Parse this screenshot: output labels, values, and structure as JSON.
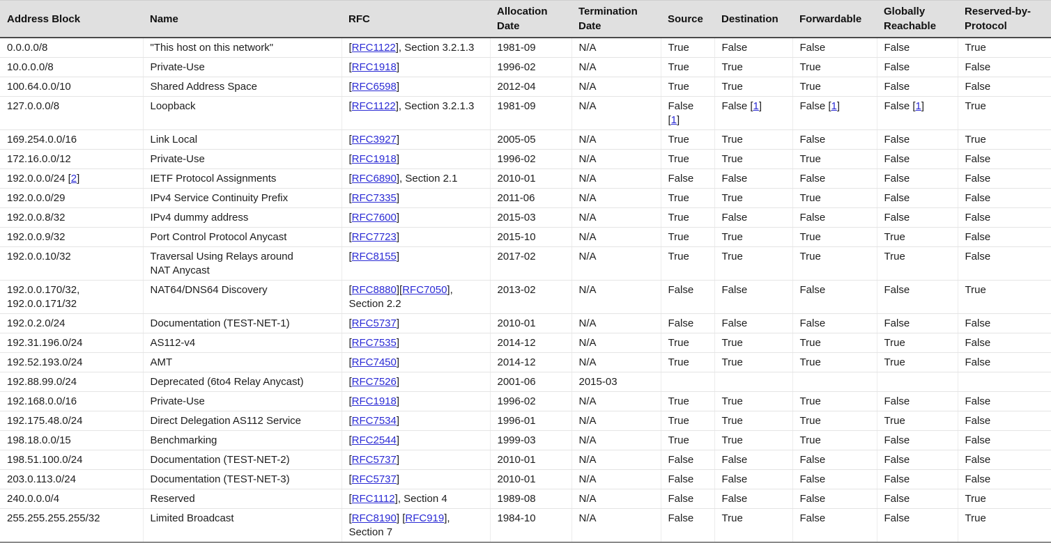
{
  "colors": {
    "header_bg": "#e0e0e0",
    "header_border": "#4a4a4a",
    "row_border": "#e4e4e4",
    "column_border": "#ececec",
    "table_bottom_border": "#8a8a8a",
    "text": "#1d1d1d",
    "link": "#2b2bd5"
  },
  "table": {
    "columns": [
      {
        "key": "address_block",
        "label": "Address Block"
      },
      {
        "key": "name",
        "label": "Name"
      },
      {
        "key": "rfc",
        "label": "RFC"
      },
      {
        "key": "allocation_date",
        "label": "Allocation Date"
      },
      {
        "key": "termination_date",
        "label": "Termination Date"
      },
      {
        "key": "source",
        "label": "Source"
      },
      {
        "key": "destination",
        "label": "Destination"
      },
      {
        "key": "forwardable",
        "label": "Forwardable"
      },
      {
        "key": "globally_reachable",
        "label": "Globally Reachable"
      },
      {
        "key": "reserved_by_protocol",
        "label": "Reserved-by-Protocol"
      }
    ],
    "rows": [
      {
        "address_block": "0.0.0.0/8",
        "name": "\"This host on this network\"",
        "rfc": [
          {
            "t": "["
          },
          {
            "t": "RFC1122",
            "a": 1
          },
          {
            "t": "], Section 3.2.1.3"
          }
        ],
        "allocation_date": "1981-09",
        "termination_date": "N/A",
        "source": "True",
        "destination": "False",
        "forwardable": "False",
        "globally_reachable": "False",
        "reserved_by_protocol": "True"
      },
      {
        "address_block": "10.0.0.0/8",
        "name": "Private-Use",
        "rfc": [
          {
            "t": "["
          },
          {
            "t": "RFC1918",
            "a": 1
          },
          {
            "t": "]"
          }
        ],
        "allocation_date": "1996-02",
        "termination_date": "N/A",
        "source": "True",
        "destination": "True",
        "forwardable": "True",
        "globally_reachable": "False",
        "reserved_by_protocol": "False"
      },
      {
        "address_block": "100.64.0.0/10",
        "name": "Shared Address Space",
        "rfc": [
          {
            "t": "["
          },
          {
            "t": "RFC6598",
            "a": 1
          },
          {
            "t": "]"
          }
        ],
        "allocation_date": "2012-04",
        "termination_date": "N/A",
        "source": "True",
        "destination": "True",
        "forwardable": "True",
        "globally_reachable": "False",
        "reserved_by_protocol": "False"
      },
      {
        "address_block": "127.0.0.0/8",
        "name": "Loopback",
        "rfc": [
          {
            "t": "["
          },
          {
            "t": "RFC1122",
            "a": 1
          },
          {
            "t": "], Section 3.2.1.3"
          }
        ],
        "allocation_date": "1981-09",
        "termination_date": "N/A",
        "source": [
          {
            "t": "False"
          },
          {
            "nl": 1
          },
          {
            "t": "["
          },
          {
            "t": "1",
            "a": 1
          },
          {
            "t": "]"
          }
        ],
        "destination": [
          {
            "t": "False ["
          },
          {
            "t": "1",
            "a": 1
          },
          {
            "t": "]"
          }
        ],
        "forwardable": [
          {
            "t": "False ["
          },
          {
            "t": "1",
            "a": 1
          },
          {
            "t": "]"
          }
        ],
        "globally_reachable": [
          {
            "t": "False ["
          },
          {
            "t": "1",
            "a": 1
          },
          {
            "t": "]"
          }
        ],
        "reserved_by_protocol": "True"
      },
      {
        "address_block": "169.254.0.0/16",
        "name": "Link Local",
        "rfc": [
          {
            "t": "["
          },
          {
            "t": "RFC3927",
            "a": 1
          },
          {
            "t": "]"
          }
        ],
        "allocation_date": "2005-05",
        "termination_date": "N/A",
        "source": "True",
        "destination": "True",
        "forwardable": "False",
        "globally_reachable": "False",
        "reserved_by_protocol": "True"
      },
      {
        "address_block": "172.16.0.0/12",
        "name": "Private-Use",
        "rfc": [
          {
            "t": "["
          },
          {
            "t": "RFC1918",
            "a": 1
          },
          {
            "t": "]"
          }
        ],
        "allocation_date": "1996-02",
        "termination_date": "N/A",
        "source": "True",
        "destination": "True",
        "forwardable": "True",
        "globally_reachable": "False",
        "reserved_by_protocol": "False"
      },
      {
        "address_block": [
          {
            "t": "192.0.0.0/24 ["
          },
          {
            "t": "2",
            "a": 1
          },
          {
            "t": "]"
          }
        ],
        "name": "IETF Protocol Assignments",
        "rfc": [
          {
            "t": "["
          },
          {
            "t": "RFC6890",
            "a": 1
          },
          {
            "t": "], Section 2.1"
          }
        ],
        "allocation_date": "2010-01",
        "termination_date": "N/A",
        "source": "False",
        "destination": "False",
        "forwardable": "False",
        "globally_reachable": "False",
        "reserved_by_protocol": "False"
      },
      {
        "address_block": "192.0.0.0/29",
        "name": "IPv4 Service Continuity Prefix",
        "rfc": [
          {
            "t": "["
          },
          {
            "t": "RFC7335",
            "a": 1
          },
          {
            "t": "]"
          }
        ],
        "allocation_date": "2011-06",
        "termination_date": "N/A",
        "source": "True",
        "destination": "True",
        "forwardable": "True",
        "globally_reachable": "False",
        "reserved_by_protocol": "False"
      },
      {
        "address_block": "192.0.0.8/32",
        "name": "IPv4 dummy address",
        "rfc": [
          {
            "t": "["
          },
          {
            "t": "RFC7600",
            "a": 1
          },
          {
            "t": "]"
          }
        ],
        "allocation_date": "2015-03",
        "termination_date": "N/A",
        "source": "True",
        "destination": "False",
        "forwardable": "False",
        "globally_reachable": "False",
        "reserved_by_protocol": "False"
      },
      {
        "address_block": "192.0.0.9/32",
        "name": "Port Control Protocol Anycast",
        "rfc": [
          {
            "t": "["
          },
          {
            "t": "RFC7723",
            "a": 1
          },
          {
            "t": "]"
          }
        ],
        "allocation_date": "2015-10",
        "termination_date": "N/A",
        "source": "True",
        "destination": "True",
        "forwardable": "True",
        "globally_reachable": "True",
        "reserved_by_protocol": "False"
      },
      {
        "address_block": "192.0.0.10/32",
        "name": [
          {
            "t": "Traversal Using Relays around"
          },
          {
            "nl": 1
          },
          {
            "t": "NAT Anycast"
          }
        ],
        "rfc": [
          {
            "t": "["
          },
          {
            "t": "RFC8155",
            "a": 1
          },
          {
            "t": "]"
          }
        ],
        "allocation_date": "2017-02",
        "termination_date": "N/A",
        "source": "True",
        "destination": "True",
        "forwardable": "True",
        "globally_reachable": "True",
        "reserved_by_protocol": "False"
      },
      {
        "address_block": [
          {
            "t": "192.0.0.170/32,"
          },
          {
            "nl": 1
          },
          {
            "t": "192.0.0.171/32"
          }
        ],
        "name": "NAT64/DNS64 Discovery",
        "rfc": [
          {
            "t": "["
          },
          {
            "t": "RFC8880",
            "a": 1
          },
          {
            "t": "]["
          },
          {
            "t": "RFC7050",
            "a": 1
          },
          {
            "t": "],"
          },
          {
            "nl": 1
          },
          {
            "t": "Section 2.2"
          }
        ],
        "allocation_date": "2013-02",
        "termination_date": "N/A",
        "source": "False",
        "destination": "False",
        "forwardable": "False",
        "globally_reachable": "False",
        "reserved_by_protocol": "True"
      },
      {
        "address_block": "192.0.2.0/24",
        "name": "Documentation (TEST-NET-1)",
        "rfc": [
          {
            "t": "["
          },
          {
            "t": "RFC5737",
            "a": 1
          },
          {
            "t": "]"
          }
        ],
        "allocation_date": "2010-01",
        "termination_date": "N/A",
        "source": "False",
        "destination": "False",
        "forwardable": "False",
        "globally_reachable": "False",
        "reserved_by_protocol": "False"
      },
      {
        "address_block": "192.31.196.0/24",
        "name": "AS112-v4",
        "rfc": [
          {
            "t": "["
          },
          {
            "t": "RFC7535",
            "a": 1
          },
          {
            "t": "]"
          }
        ],
        "allocation_date": "2014-12",
        "termination_date": "N/A",
        "source": "True",
        "destination": "True",
        "forwardable": "True",
        "globally_reachable": "True",
        "reserved_by_protocol": "False"
      },
      {
        "address_block": "192.52.193.0/24",
        "name": "AMT",
        "rfc": [
          {
            "t": "["
          },
          {
            "t": "RFC7450",
            "a": 1
          },
          {
            "t": "]"
          }
        ],
        "allocation_date": "2014-12",
        "termination_date": "N/A",
        "source": "True",
        "destination": "True",
        "forwardable": "True",
        "globally_reachable": "True",
        "reserved_by_protocol": "False"
      },
      {
        "address_block": "192.88.99.0/24",
        "name": "Deprecated (6to4 Relay Anycast)",
        "rfc": [
          {
            "t": "["
          },
          {
            "t": "RFC7526",
            "a": 1
          },
          {
            "t": "]"
          }
        ],
        "allocation_date": "2001-06",
        "termination_date": "2015-03",
        "source": "",
        "destination": "",
        "forwardable": "",
        "globally_reachable": "",
        "reserved_by_protocol": ""
      },
      {
        "address_block": "192.168.0.0/16",
        "name": "Private-Use",
        "rfc": [
          {
            "t": "["
          },
          {
            "t": "RFC1918",
            "a": 1
          },
          {
            "t": "]"
          }
        ],
        "allocation_date": "1996-02",
        "termination_date": "N/A",
        "source": "True",
        "destination": "True",
        "forwardable": "True",
        "globally_reachable": "False",
        "reserved_by_protocol": "False"
      },
      {
        "address_block": "192.175.48.0/24",
        "name": "Direct Delegation AS112 Service",
        "rfc": [
          {
            "t": "["
          },
          {
            "t": "RFC7534",
            "a": 1
          },
          {
            "t": "]"
          }
        ],
        "allocation_date": "1996-01",
        "termination_date": "N/A",
        "source": "True",
        "destination": "True",
        "forwardable": "True",
        "globally_reachable": "True",
        "reserved_by_protocol": "False"
      },
      {
        "address_block": "198.18.0.0/15",
        "name": "Benchmarking",
        "rfc": [
          {
            "t": "["
          },
          {
            "t": "RFC2544",
            "a": 1
          },
          {
            "t": "]"
          }
        ],
        "allocation_date": "1999-03",
        "termination_date": "N/A",
        "source": "True",
        "destination": "True",
        "forwardable": "True",
        "globally_reachable": "False",
        "reserved_by_protocol": "False"
      },
      {
        "address_block": "198.51.100.0/24",
        "name": "Documentation (TEST-NET-2)",
        "rfc": [
          {
            "t": "["
          },
          {
            "t": "RFC5737",
            "a": 1
          },
          {
            "t": "]"
          }
        ],
        "allocation_date": "2010-01",
        "termination_date": "N/A",
        "source": "False",
        "destination": "False",
        "forwardable": "False",
        "globally_reachable": "False",
        "reserved_by_protocol": "False"
      },
      {
        "address_block": "203.0.113.0/24",
        "name": "Documentation (TEST-NET-3)",
        "rfc": [
          {
            "t": "["
          },
          {
            "t": "RFC5737",
            "a": 1
          },
          {
            "t": "]"
          }
        ],
        "allocation_date": "2010-01",
        "termination_date": "N/A",
        "source": "False",
        "destination": "False",
        "forwardable": "False",
        "globally_reachable": "False",
        "reserved_by_protocol": "False"
      },
      {
        "address_block": "240.0.0.0/4",
        "name": "Reserved",
        "rfc": [
          {
            "t": "["
          },
          {
            "t": "RFC1112",
            "a": 1
          },
          {
            "t": "], Section 4"
          }
        ],
        "allocation_date": "1989-08",
        "termination_date": "N/A",
        "source": "False",
        "destination": "False",
        "forwardable": "False",
        "globally_reachable": "False",
        "reserved_by_protocol": "True"
      },
      {
        "address_block": "255.255.255.255/32",
        "name": "Limited Broadcast",
        "rfc": [
          {
            "t": "["
          },
          {
            "t": "RFC8190",
            "a": 1
          },
          {
            "t": "] ["
          },
          {
            "t": "RFC919",
            "a": 1
          },
          {
            "t": "],"
          },
          {
            "nl": 1
          },
          {
            "t": "Section 7"
          }
        ],
        "allocation_date": "1984-10",
        "termination_date": "N/A",
        "source": "False",
        "destination": "True",
        "forwardable": "False",
        "globally_reachable": "False",
        "reserved_by_protocol": "True"
      }
    ]
  }
}
